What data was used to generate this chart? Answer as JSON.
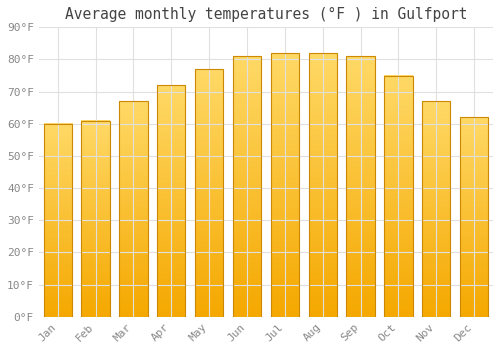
{
  "title": "Average monthly temperatures (°F ) in Gulfport",
  "months": [
    "Jan",
    "Feb",
    "Mar",
    "Apr",
    "May",
    "Jun",
    "Jul",
    "Aug",
    "Sep",
    "Oct",
    "Nov",
    "Dec"
  ],
  "values": [
    60,
    61,
    67,
    72,
    77,
    81,
    82,
    82,
    81,
    75,
    67,
    62
  ],
  "bar_color_top": "#FFD966",
  "bar_color_bottom": "#F5A800",
  "bar_edge_color": "#CC8800",
  "background_color": "#ffffff",
  "plot_bg_color": "#ffffff",
  "ylim": [
    0,
    90
  ],
  "yticks": [
    0,
    10,
    20,
    30,
    40,
    50,
    60,
    70,
    80,
    90
  ],
  "ytick_labels": [
    "0°F",
    "10°F",
    "20°F",
    "30°F",
    "40°F",
    "50°F",
    "60°F",
    "70°F",
    "80°F",
    "90°F"
  ],
  "grid_color": "#e0e0e0",
  "tick_color": "#888888",
  "title_fontsize": 10.5,
  "tick_fontsize": 8,
  "font_family": "monospace",
  "bar_width": 0.75
}
